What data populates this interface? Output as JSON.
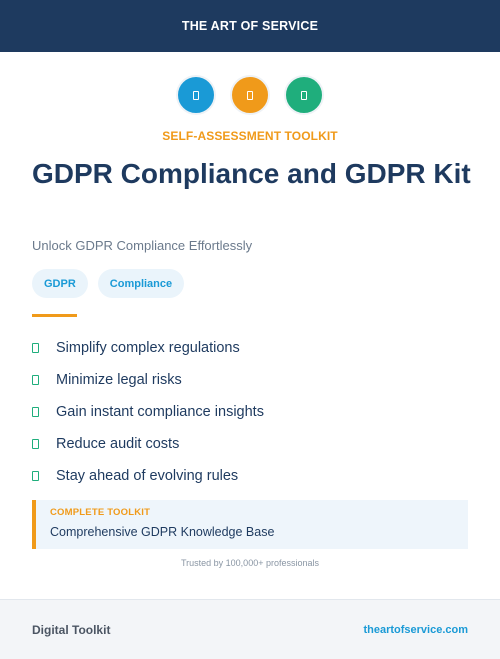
{
  "header": {
    "brand": "THE ART OF SERVICE"
  },
  "icons": [
    {
      "name": "document-icon",
      "color": "#1a9ad6"
    },
    {
      "name": "document-icon",
      "color": "#f09a1a"
    },
    {
      "name": "document-icon",
      "color": "#1fae7c"
    }
  ],
  "kicker": "SELF-ASSESSMENT TOOLKIT",
  "title": "GDPR Compliance and GDPR Kit",
  "subtitle": "Unlock GDPR Compliance Effortlessly",
  "tags": [
    "GDPR",
    "Compliance"
  ],
  "features": [
    "Simplify complex regulations",
    "Minimize legal risks",
    "Gain instant compliance insights",
    "Reduce audit costs",
    "Stay ahead of evolving rules"
  ],
  "callout": {
    "kicker": "COMPLETE TOOLKIT",
    "text": "Comprehensive GDPR Knowledge Base"
  },
  "trusted": "Trusted by 100,000+ professionals",
  "footer": {
    "left": "Digital Toolkit",
    "right": "theartofservice.com"
  },
  "colors": {
    "navy": "#1e3a5f",
    "accent_orange": "#f09a1a",
    "accent_blue": "#1a9ad6",
    "accent_green": "#1fae7c"
  }
}
